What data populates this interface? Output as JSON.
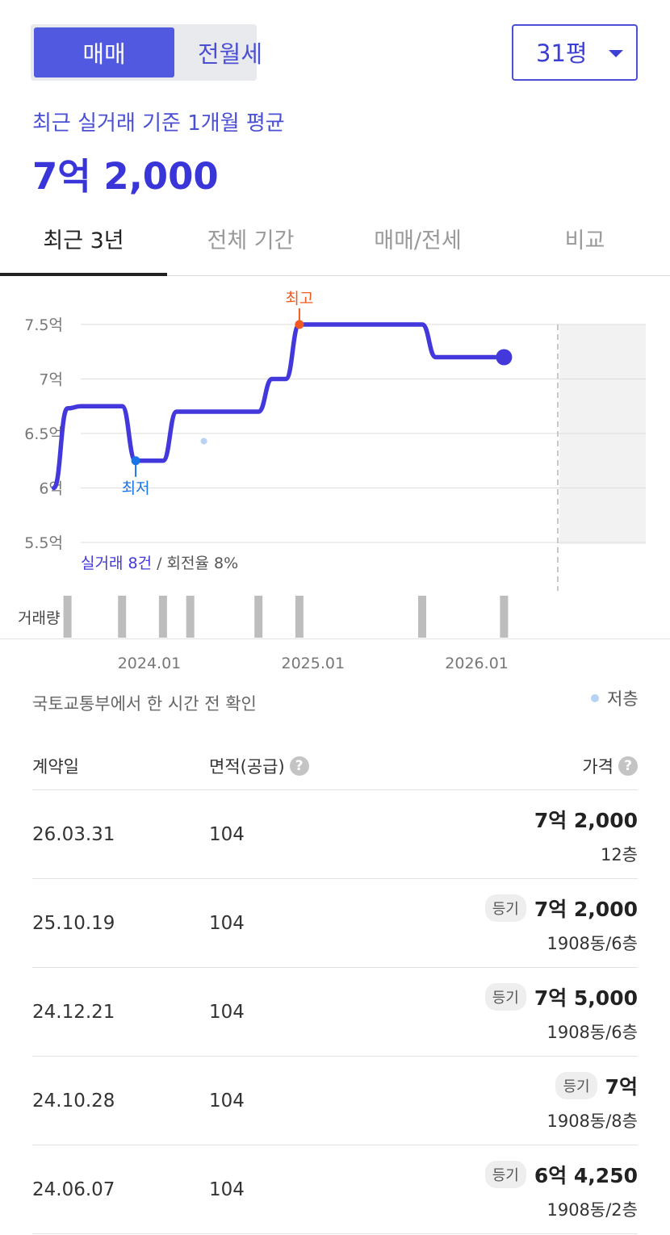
{
  "toggle": {
    "sale": "매매",
    "rent": "전월세"
  },
  "size_select": {
    "value": "31평",
    "icon": "caret-down-icon"
  },
  "summary": {
    "label": "최근 실거래 기준 1개월 평균",
    "price": "7억 2,000"
  },
  "tabs": [
    {
      "label": "최근 3년",
      "active": true
    },
    {
      "label": "전체 기간",
      "active": false
    },
    {
      "label": "매매/전세",
      "active": false
    },
    {
      "label": "비교",
      "active": false
    }
  ],
  "chart_data": {
    "type": "line",
    "y_unit": "억",
    "ylim": [
      5.5,
      7.5
    ],
    "y_ticks": [
      "7.5억",
      "7억",
      "6.5억",
      "6억",
      "5.5억"
    ],
    "x_ticks": [
      "2024.01",
      "2025.01",
      "2026.01"
    ],
    "grid": true,
    "series": [
      {
        "x": [
          "2023.06",
          "2023.07",
          "2023.08",
          "2023.10",
          "2023.11",
          "2023.12",
          "2024.02",
          "2024.03",
          "2024.05",
          "2024.06",
          "2024.09",
          "2024.10",
          "2024.11",
          "2024.12",
          "2025.02",
          "2025.09",
          "2025.10",
          "2026.01",
          "2026.03"
        ],
        "y": [
          6.0,
          6.73,
          6.75,
          6.75,
          6.75,
          6.25,
          6.25,
          6.7,
          6.7,
          6.7,
          6.7,
          7.0,
          7.0,
          7.5,
          7.5,
          7.5,
          7.2,
          7.2,
          7.2
        ]
      }
    ],
    "scatter_points": [
      {
        "x": "2024.05",
        "y": 6.43
      }
    ],
    "annotations": {
      "max": "최고",
      "min": "최저"
    },
    "deals_label": "실거래 8건",
    "turnover_label": " / 회전율 8%",
    "volume_label": "거래량",
    "volume_months": [
      "2023.07",
      "2023.11",
      "2024.02",
      "2024.04",
      "2024.09",
      "2024.12",
      "2025.09",
      "2026.03"
    ],
    "colors": {
      "line": "#4338dc",
      "max": "#f05a22",
      "min": "#1a73e8",
      "low_floor": "#b6d2f4",
      "volume": "#bdbdbd"
    }
  },
  "source": "국토교통부에서 한 시간 전 확인",
  "legend": {
    "low_floor": "저층"
  },
  "table": {
    "headers": {
      "date": "계약일",
      "area": "면적(공급)",
      "price": "가격",
      "help_icon": "question-circle-icon",
      "help_glyph": "?"
    },
    "rows": [
      {
        "date": "26.03.31",
        "area": "104",
        "badge": "",
        "price": "7억 2,000",
        "floor": "12층"
      },
      {
        "date": "25.10.19",
        "area": "104",
        "badge": "등기",
        "price": "7억 2,000",
        "floor": "1908동/6층"
      },
      {
        "date": "24.12.21",
        "area": "104",
        "badge": "등기",
        "price": "7억 5,000",
        "floor": "1908동/6층"
      },
      {
        "date": "24.10.28",
        "area": "104",
        "badge": "등기",
        "price": "7억",
        "floor": "1908동/8층"
      },
      {
        "date": "24.06.07",
        "area": "104",
        "badge": "등기",
        "price": "6억 4,250",
        "floor": "1908동/2층"
      }
    ]
  }
}
